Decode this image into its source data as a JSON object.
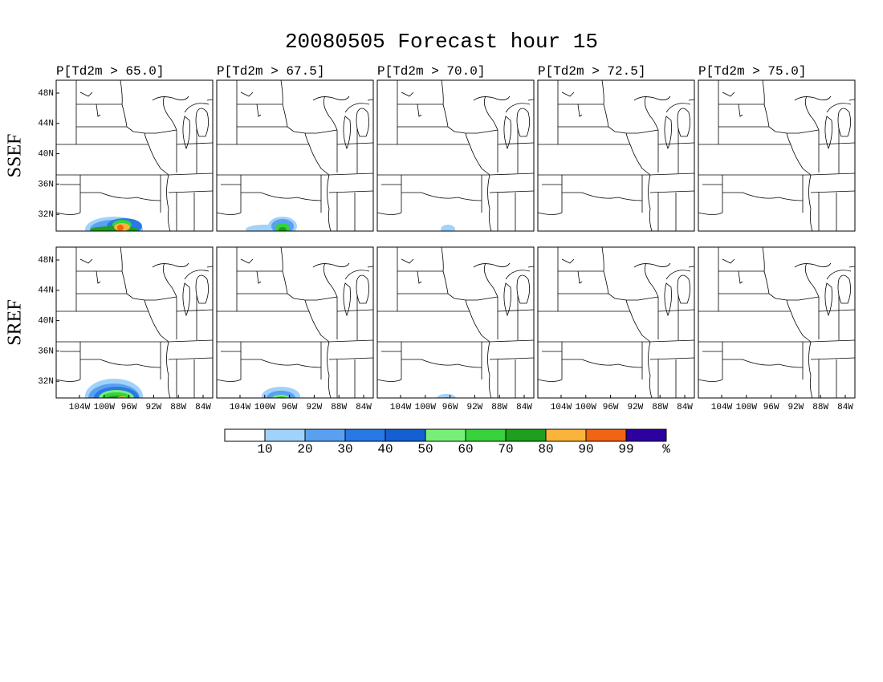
{
  "title": "20080505 Forecast hour 15",
  "columns": [
    "P[Td2m > 65.0]",
    "P[Td2m > 67.5]",
    "P[Td2m > 70.0]",
    "P[Td2m > 72.5]",
    "P[Td2m > 75.0]"
  ],
  "rows": [
    "SSEF",
    "SREF"
  ],
  "lat_labels": [
    "48N",
    "44N",
    "40N",
    "36N",
    "32N"
  ],
  "lon_labels": [
    "104W",
    "100W",
    "96W",
    "92W",
    "88W",
    "84W"
  ],
  "colorbar": {
    "colors": [
      "#ffffff",
      "#a0d2fa",
      "#5aa0f0",
      "#2878e6",
      "#1460d2",
      "#78f078",
      "#37d23c",
      "#1ea01e",
      "#fab43c",
      "#f06414",
      "#2d00a0"
    ],
    "labels": [
      "10",
      "20",
      "30",
      "40",
      "50",
      "60",
      "70",
      "80",
      "90",
      "99"
    ],
    "unit": "%"
  }
}
